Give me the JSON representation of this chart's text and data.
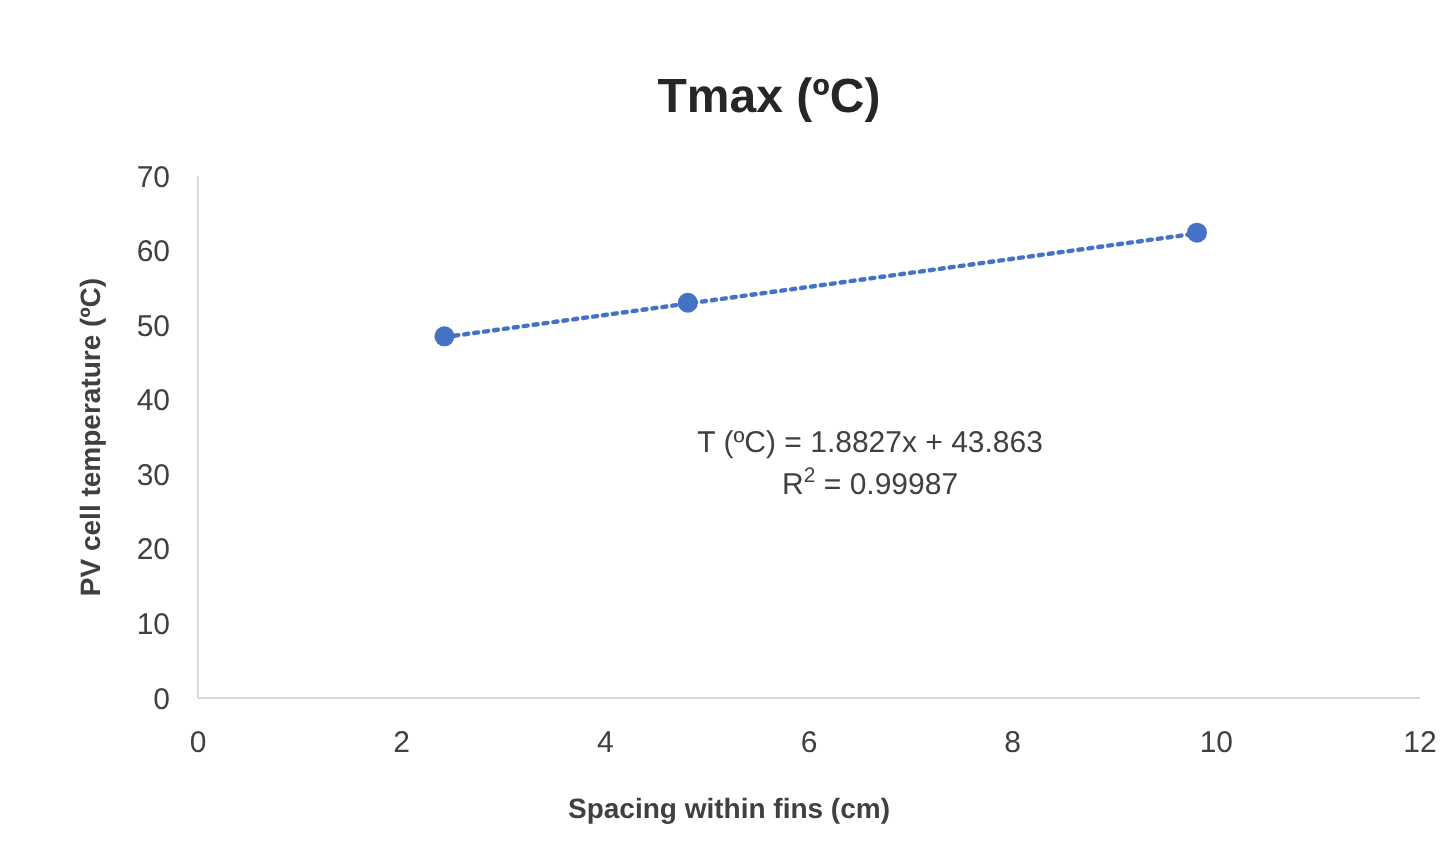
{
  "chart_data": {
    "type": "scatter",
    "title": "Tmax (ºC)",
    "xlabel": "Spacing within fins (cm)",
    "ylabel": "PV cell temperature (ºC)",
    "xlim": [
      0,
      12
    ],
    "xticks": [
      0,
      2,
      4,
      6,
      8,
      10,
      12
    ],
    "ylim": [
      0,
      70
    ],
    "yticks": [
      0,
      10,
      20,
      30,
      40,
      50,
      60,
      70
    ],
    "grid": false,
    "marker": "circle",
    "series": [
      {
        "color": "#4472c4",
        "x": [
          2.42,
          4.81,
          9.81
        ],
        "values": [
          48.5,
          53,
          62.4
        ]
      },
      {
        "type": "line",
        "color": "#4472c4",
        "line_style": "dotted",
        "marker": "none",
        "x": [
          2.42,
          9.81
        ],
        "values": [
          48.4,
          62.3
        ]
      }
    ],
    "annotations": [
      "T (ºC) = 1.8827x + 43.863",
      "R$^{2}$ = 0.99987"
    ]
  }
}
